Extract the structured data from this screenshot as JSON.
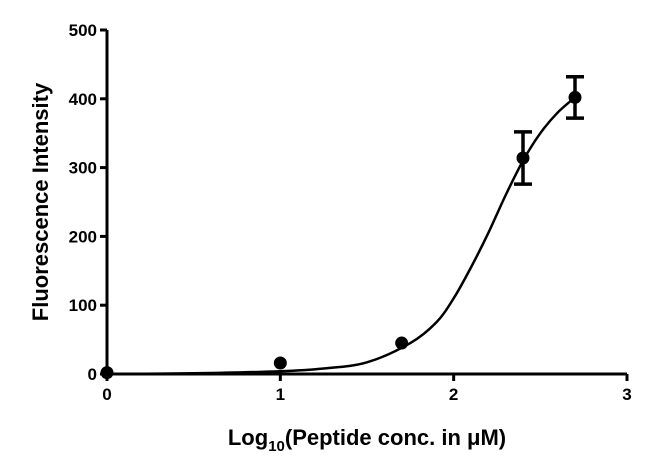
{
  "chart_data": {
    "type": "scatter",
    "y_label": "Fluorescence Intensity",
    "x_label": {
      "base": "Log",
      "subscript": "10",
      "rest": "(Peptide conc. in μM)"
    },
    "xlim": [
      0,
      3
    ],
    "xticks": [
      0,
      1,
      2,
      3
    ],
    "ylim": [
      0,
      500
    ],
    "yticks": [
      0,
      100,
      200,
      300,
      400,
      500
    ],
    "series": [
      {
        "type": "scatter",
        "color": "#000000",
        "x": [
          0,
          1,
          1.7,
          2.4,
          2.7
        ],
        "values": [
          2,
          16,
          45,
          314,
          402
        ],
        "errors": [
          null,
          null,
          null,
          38,
          30
        ]
      },
      {
        "type": "line",
        "color": "#000000",
        "x": [
          0,
          0.5,
          1,
          1.25,
          1.5,
          1.75,
          1.9,
          2,
          2.1,
          2.2,
          2.3,
          2.4,
          2.5,
          2.6,
          2.7
        ],
        "values": [
          0,
          1,
          4,
          8,
          17,
          45,
          75,
          110,
          155,
          205,
          260,
          310,
          350,
          380,
          402
        ]
      }
    ]
  }
}
